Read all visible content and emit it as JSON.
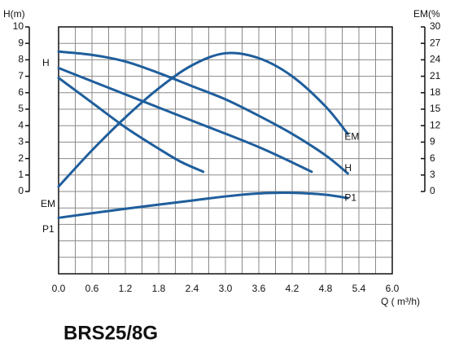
{
  "chart_data": {
    "type": "line",
    "title": "BRS25/8G",
    "ylabel": "H(m)",
    "y2label": "EM(%",
    "xlabel": "Q ( m³/h)",
    "xlim": [
      0,
      6
    ],
    "xticks": [
      {
        "value": 0,
        "label": "0.0"
      },
      0.6,
      1.2,
      1.8,
      2.4,
      {
        "value": 3,
        "label": "3.0"
      },
      3.6,
      4.2,
      4.8,
      5.4,
      {
        "value": 6,
        "label": "6.0"
      }
    ],
    "xgrid_minor": [
      0.3,
      0.9,
      1.5,
      2.1,
      2.7,
      3.3,
      3.9,
      4.5,
      5.1,
      5.7
    ],
    "ylim": [
      -5,
      10
    ],
    "yticks": [
      0,
      1,
      2,
      3,
      4,
      5,
      6,
      7,
      8,
      9,
      10
    ],
    "ygrid_extra": [
      -1,
      -2,
      -3,
      -4,
      -5
    ],
    "y2lim": [
      -15,
      30
    ],
    "y2ticks": [
      0,
      3,
      6,
      9,
      12,
      15,
      18,
      21,
      24,
      27,
      30
    ],
    "grid": true,
    "color": "#1f5e9c",
    "annotations": [
      "H",
      "EM",
      "P1"
    ],
    "series": [
      {
        "name": "H",
        "x": [
          0,
          0.6,
          1.2,
          1.8,
          2.4,
          3.0,
          3.6,
          4.2,
          4.8,
          5.2
        ],
        "values": [
          8.5,
          8.3,
          7.9,
          7.2,
          6.4,
          5.6,
          4.6,
          3.5,
          2.2,
          1.1
        ]
      },
      {
        "x": [
          0,
          1.2,
          2.4,
          3.6,
          4.55
        ],
        "values": [
          7.5,
          5.9,
          4.3,
          2.7,
          1.2
        ]
      },
      {
        "x": [
          0,
          0.6,
          1.2,
          1.8,
          2.2,
          2.6
        ],
        "values": [
          6.9,
          5.4,
          3.9,
          2.6,
          1.8,
          1.2
        ]
      },
      {
        "name": "EM",
        "axis": "y2",
        "x": [
          0,
          0.6,
          1.2,
          1.8,
          2.4,
          3.0,
          3.6,
          4.2,
          4.8,
          5.2
        ],
        "values": [
          0.9,
          7.5,
          13.5,
          18.8,
          23,
          25.2,
          24.3,
          21,
          15.5,
          10.5
        ]
      },
      {
        "name": "P1",
        "x": [
          0,
          1.2,
          2.4,
          3.0,
          3.6,
          4.2,
          4.8,
          5.2
        ],
        "values": [
          -1.6,
          -1.05,
          -0.55,
          -0.3,
          -0.12,
          -0.08,
          -0.2,
          -0.4
        ]
      }
    ]
  }
}
